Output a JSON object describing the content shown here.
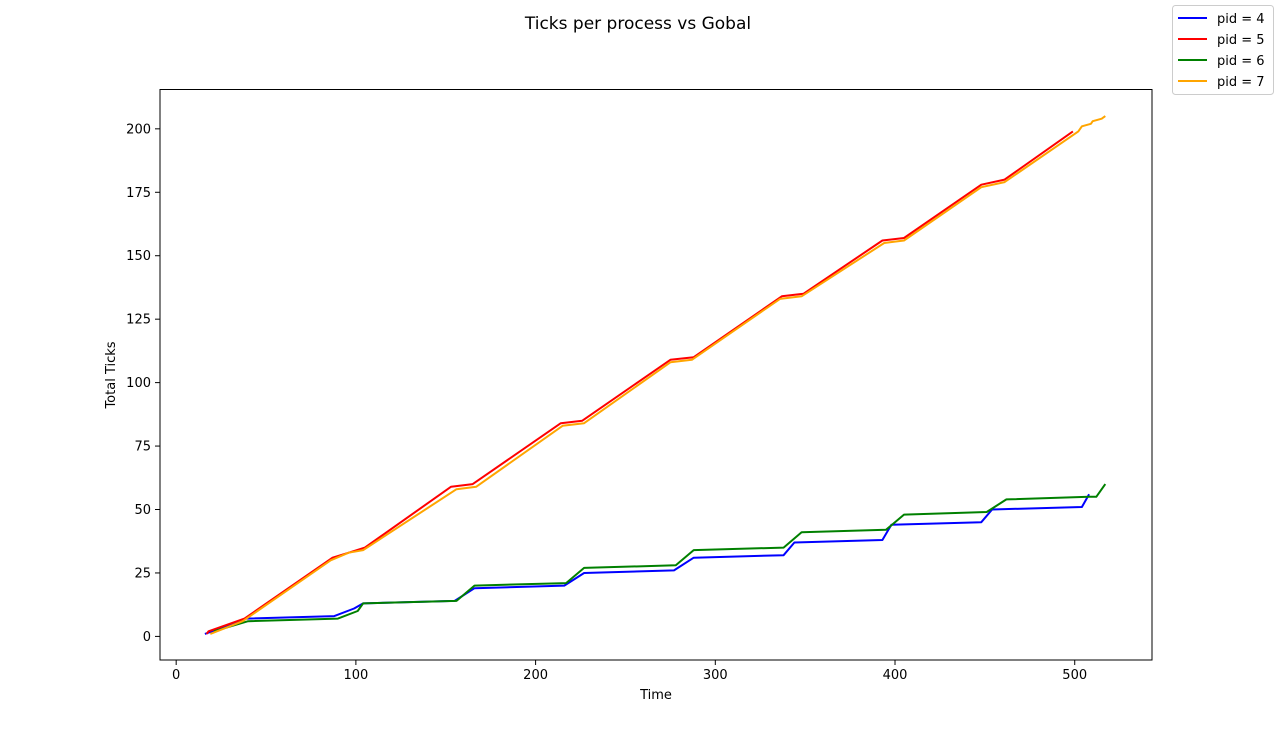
{
  "chart_data": {
    "type": "line",
    "title": "Ticks per process vs Gobal",
    "xlabel": "Time",
    "ylabel": "Total Ticks",
    "xlim": [
      -9,
      543
    ],
    "ylim": [
      -9.3,
      215.5
    ],
    "xticks": [
      0,
      100,
      200,
      300,
      400,
      500
    ],
    "yticks": [
      0,
      25,
      50,
      75,
      100,
      125,
      150,
      175,
      200
    ],
    "grid": false,
    "legend_position": "top-right",
    "series": [
      {
        "name": "pid = 4",
        "color": "#0000ff",
        "points": [
          [
            16,
            1
          ],
          [
            20,
            2
          ],
          [
            39,
            7
          ],
          [
            88,
            8
          ],
          [
            99,
            11
          ],
          [
            104,
            13
          ],
          [
            155,
            14
          ],
          [
            166,
            19
          ],
          [
            216,
            20
          ],
          [
            227,
            25
          ],
          [
            277,
            26
          ],
          [
            288,
            31
          ],
          [
            338,
            32
          ],
          [
            344,
            37
          ],
          [
            393,
            38
          ],
          [
            398,
            44
          ],
          [
            448,
            45
          ],
          [
            454,
            50
          ],
          [
            504,
            51
          ],
          [
            508,
            56
          ]
        ]
      },
      {
        "name": "pid = 5",
        "color": "#ff0000",
        "points": [
          [
            17,
            1
          ],
          [
            18,
            2
          ],
          [
            38,
            7
          ],
          [
            87,
            31
          ],
          [
            96,
            33
          ],
          [
            105,
            35
          ],
          [
            153,
            59
          ],
          [
            165,
            60
          ],
          [
            214,
            84
          ],
          [
            226,
            85
          ],
          [
            275,
            109
          ],
          [
            288,
            110
          ],
          [
            337,
            134
          ],
          [
            349,
            135
          ],
          [
            393,
            156
          ],
          [
            405,
            157
          ],
          [
            448,
            178
          ],
          [
            461,
            180
          ],
          [
            499,
            199
          ]
        ]
      },
      {
        "name": "pid = 6",
        "color": "#008000",
        "points": [
          [
            21,
            2
          ],
          [
            40,
            6
          ],
          [
            90,
            7
          ],
          [
            101,
            10
          ],
          [
            104,
            13
          ],
          [
            156,
            14
          ],
          [
            166,
            20
          ],
          [
            217,
            21
          ],
          [
            227,
            27
          ],
          [
            278,
            28
          ],
          [
            288,
            34
          ],
          [
            338,
            35
          ],
          [
            348,
            41
          ],
          [
            395,
            42
          ],
          [
            405,
            48
          ],
          [
            451,
            49
          ],
          [
            462,
            54
          ],
          [
            508,
            55
          ],
          [
            512,
            55
          ],
          [
            517,
            60
          ]
        ]
      },
      {
        "name": "pid = 7",
        "color": "#ffa500",
        "points": [
          [
            19,
            1
          ],
          [
            37,
            6
          ],
          [
            86,
            30
          ],
          [
            96,
            33
          ],
          [
            104,
            34
          ],
          [
            156,
            58
          ],
          [
            167,
            59
          ],
          [
            215,
            83
          ],
          [
            227,
            84
          ],
          [
            275,
            108
          ],
          [
            287,
            109
          ],
          [
            336,
            133
          ],
          [
            348,
            134
          ],
          [
            394,
            155
          ],
          [
            405,
            156
          ],
          [
            448,
            177
          ],
          [
            461,
            179
          ],
          [
            502,
            199
          ],
          [
            504,
            201
          ],
          [
            509,
            202
          ],
          [
            510,
            203
          ],
          [
            515,
            204
          ],
          [
            517,
            205
          ]
        ]
      }
    ]
  }
}
